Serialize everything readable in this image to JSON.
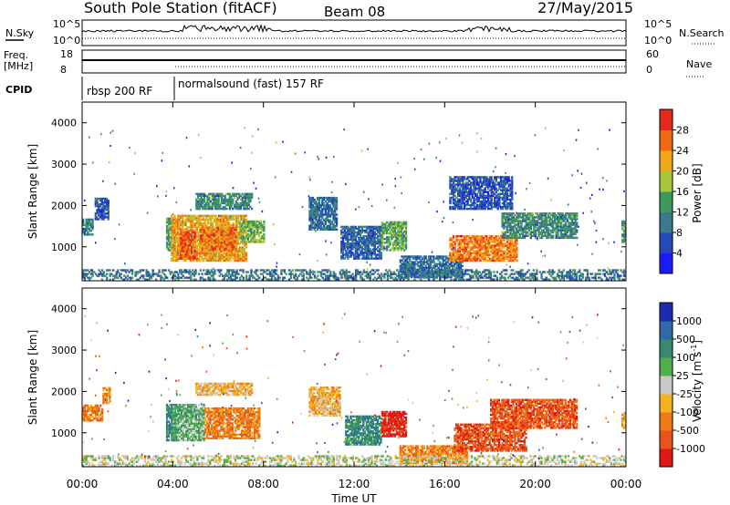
{
  "header": {
    "station": "South Pole Station (fitACF)",
    "beam": "Beam 08",
    "date": "27/May/2015"
  },
  "top_panels": {
    "nsky_label": "N.Sky",
    "nsky_ticks": [
      "10^5",
      "10^0"
    ],
    "nsearch_label": "N.Search",
    "nsearch_ticks": [
      "10^5",
      "10^0"
    ],
    "freq_label_1": "Freq.",
    "freq_label_2": "[MHz]",
    "freq_ticks": [
      "18",
      "8"
    ],
    "nave_label": "Nave",
    "nave_ticks": [
      "60",
      "0"
    ],
    "cpid_label": "CPID",
    "cpid_segments": [
      {
        "start_hour": 0.0,
        "label": "rbsp 200 RF"
      },
      {
        "start_hour": 3.98,
        "label": "normalsound (fast) 157 RF"
      }
    ]
  },
  "chart_data": [
    {
      "type": "heatmap",
      "name": "power",
      "xlabel": "",
      "ylabel": "Slant Range [km]",
      "x_ticks": [
        "00:00",
        "04:00",
        "08:00",
        "12:00",
        "16:00",
        "20:00",
        "00:00"
      ],
      "x_range_hours": [
        0,
        24
      ],
      "ylim": [
        180,
        4500
      ],
      "y_ticks": [
        1000,
        2000,
        3000,
        4000
      ],
      "colorbar": {
        "label": "Power [dB]",
        "range": [
          0,
          32
        ],
        "ticks": [
          4,
          8,
          12,
          16,
          20,
          24,
          28
        ],
        "colors": [
          "#1a1aff",
          "#2549b8",
          "#3a7a8c",
          "#3c9a60",
          "#a8c837",
          "#f3a81c",
          "#f06a14",
          "#e52a1a"
        ]
      },
      "regions": [
        {
          "t": [
            0.0,
            0.45
          ],
          "r": [
            1280,
            1650
          ],
          "v": 10
        },
        {
          "t": [
            0.55,
            1.15
          ],
          "r": [
            1650,
            2150
          ],
          "v": 7
        },
        {
          "t": [
            3.7,
            4.1
          ],
          "r": [
            900,
            1700
          ],
          "v": 14
        },
        {
          "t": [
            3.9,
            7.2
          ],
          "r": [
            650,
            1750
          ],
          "v": 22
        },
        {
          "t": [
            4.3,
            5.0
          ],
          "r": [
            700,
            1400
          ],
          "v": 27
        },
        {
          "t": [
            5.2,
            6.8
          ],
          "r": [
            900,
            1450
          ],
          "v": 26
        },
        {
          "t": [
            7.0,
            8.0
          ],
          "r": [
            1100,
            1600
          ],
          "v": 16
        },
        {
          "t": [
            5.0,
            7.5
          ],
          "r": [
            1900,
            2300
          ],
          "v": 12
        },
        {
          "t": [
            10.0,
            11.2
          ],
          "r": [
            1400,
            2200
          ],
          "v": 9
        },
        {
          "t": [
            11.4,
            13.2
          ],
          "r": [
            700,
            1500
          ],
          "v": 8
        },
        {
          "t": [
            13.2,
            14.3
          ],
          "r": [
            900,
            1600
          ],
          "v": 15
        },
        {
          "t": [
            14.0,
            16.8
          ],
          "r": [
            250,
            750
          ],
          "v": 9
        },
        {
          "t": [
            16.2,
            19.2
          ],
          "r": [
            650,
            1250
          ],
          "v": 25
        },
        {
          "t": [
            18.5,
            21.8
          ],
          "r": [
            1200,
            1800
          ],
          "v": 12
        },
        {
          "t": [
            16.2,
            19.0
          ],
          "r": [
            1900,
            2700
          ],
          "v": 7
        },
        {
          "t": [
            23.8,
            24.0
          ],
          "r": [
            1100,
            1600
          ],
          "v": 13
        },
        {
          "t": [
            0.0,
            24.0
          ],
          "r": [
            190,
            420
          ],
          "v": 10
        }
      ]
    },
    {
      "type": "heatmap",
      "name": "velocity",
      "xlabel": "Time UT",
      "ylabel": "Slant Range [km]",
      "x_ticks": [
        "00:00",
        "04:00",
        "08:00",
        "12:00",
        "16:00",
        "20:00",
        "00:00"
      ],
      "x_range_hours": [
        0,
        24
      ],
      "ylim": [
        180,
        4500
      ],
      "y_ticks": [
        1000,
        2000,
        3000,
        4000
      ],
      "colorbar": {
        "label": "Velocity [m s^-1]",
        "ticks": [
          "1000",
          "500",
          "100",
          "25",
          "-25",
          "-100",
          "-500",
          "-1000"
        ],
        "colors": [
          "#1c2bb0",
          "#2f6aa6",
          "#388a6e",
          "#4fb04a",
          "#c8c8c8",
          "#f4b31e",
          "#f07a16",
          "#e8541a",
          "#e01818"
        ]
      },
      "regions": [
        {
          "t": [
            0.0,
            0.9
          ],
          "r": [
            1280,
            1650
          ],
          "v": 6
        },
        {
          "t": [
            0.9,
            1.2
          ],
          "r": [
            1700,
            2100
          ],
          "v": 6
        },
        {
          "t": [
            3.7,
            4.2
          ],
          "r": [
            800,
            1700
          ],
          "v": 2
        },
        {
          "t": [
            4.0,
            5.4
          ],
          "r": [
            800,
            1700
          ],
          "v": 3
        },
        {
          "t": [
            5.4,
            7.8
          ],
          "r": [
            850,
            1600
          ],
          "v": 6
        },
        {
          "t": [
            5.0,
            7.5
          ],
          "r": [
            1900,
            2200
          ],
          "v": 5
        },
        {
          "t": [
            10.0,
            11.4
          ],
          "r": [
            1400,
            2100
          ],
          "v": 5
        },
        {
          "t": [
            11.6,
            13.2
          ],
          "r": [
            700,
            1400
          ],
          "v": 2
        },
        {
          "t": [
            13.2,
            14.3
          ],
          "r": [
            900,
            1500
          ],
          "v": 8
        },
        {
          "t": [
            14.0,
            17.0
          ],
          "r": [
            250,
            700
          ],
          "v": 6
        },
        {
          "t": [
            16.4,
            19.6
          ],
          "r": [
            550,
            1200
          ],
          "v": 7
        },
        {
          "t": [
            18.0,
            21.8
          ],
          "r": [
            1100,
            1800
          ],
          "v": 7
        },
        {
          "t": [
            23.8,
            24.0
          ],
          "r": [
            1100,
            1500
          ],
          "v": 5
        },
        {
          "t": [
            0.0,
            24.0
          ],
          "r": [
            190,
            420
          ],
          "v": 4
        }
      ]
    }
  ]
}
